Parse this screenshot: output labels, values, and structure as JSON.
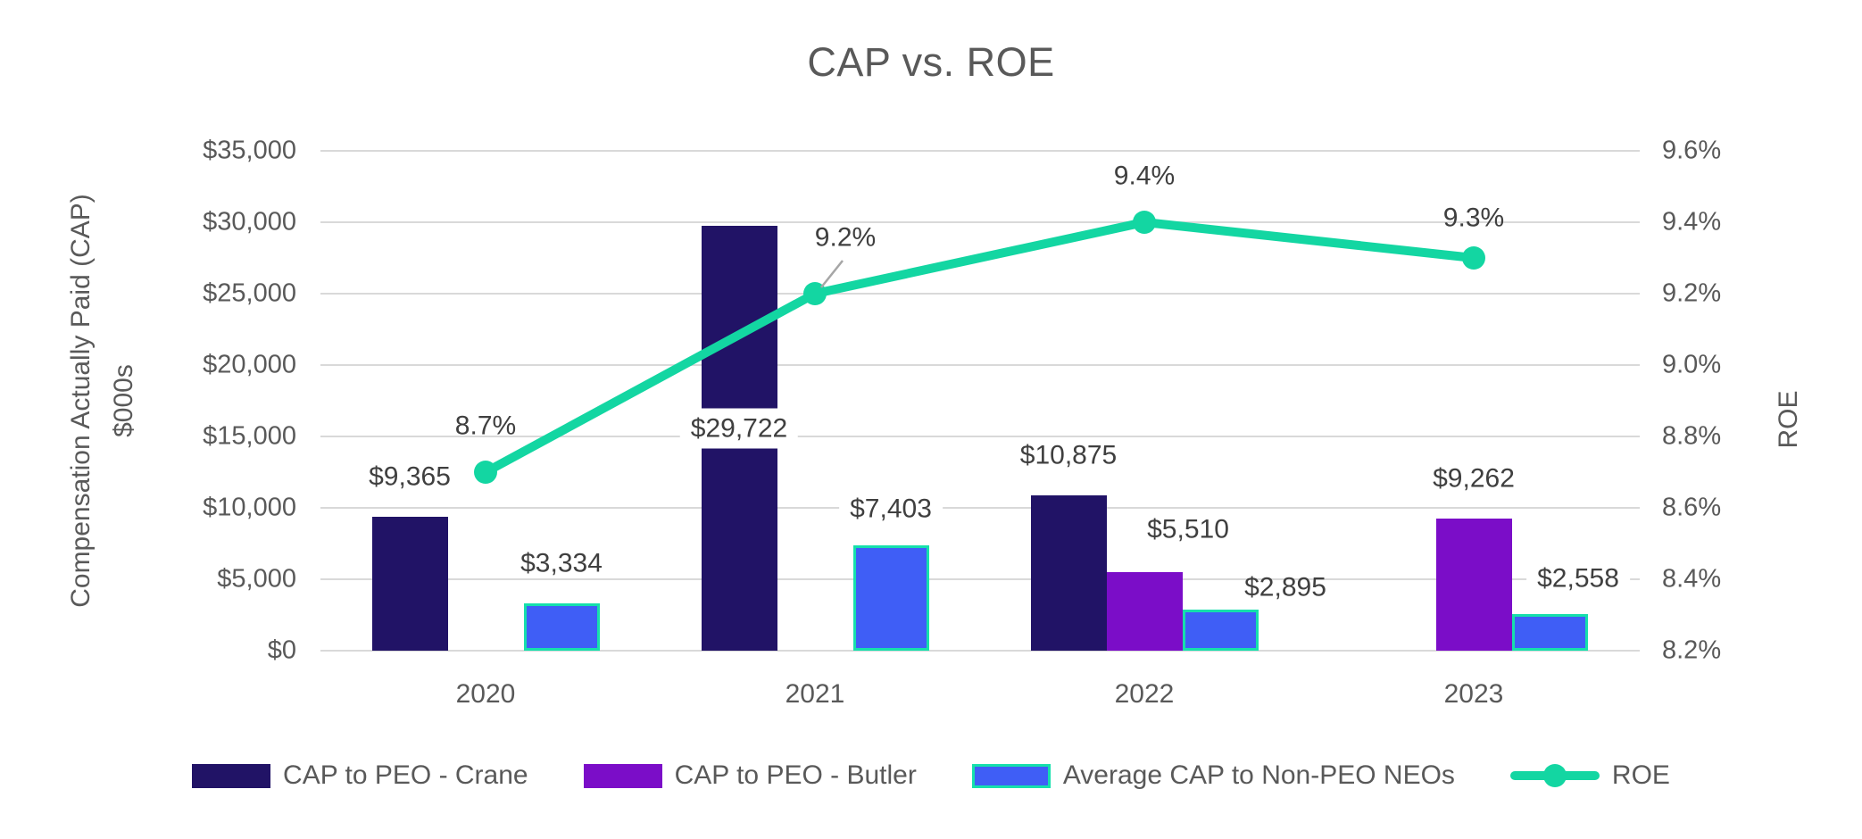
{
  "chart_data": {
    "type": "bar+line",
    "title": "CAP vs. ROE",
    "categories": [
      "2020",
      "2021",
      "2022",
      "2023"
    ],
    "series": [
      {
        "name": "CAP to PEO - Crane",
        "chart_type": "bar",
        "axis": "left",
        "color": "#211366",
        "values": [
          9365,
          29722,
          10875,
          null
        ],
        "point_labels": [
          "$9,365",
          "$29,722",
          "$10,875",
          null
        ]
      },
      {
        "name": "CAP to PEO - Butler",
        "chart_type": "bar",
        "axis": "left",
        "color": "#7B0DC8",
        "values": [
          null,
          null,
          5510,
          9262
        ],
        "point_labels": [
          null,
          null,
          "$5,510",
          "$9,262"
        ]
      },
      {
        "name": "Average CAP to Non-PEO NEOs",
        "chart_type": "bar",
        "axis": "left",
        "color": "#3F5EF6",
        "border_color": "#15E0AC",
        "values": [
          3334,
          7403,
          2895,
          2558
        ],
        "point_labels": [
          "$3,334",
          "$7,403",
          "$2,895",
          "$2,558"
        ]
      },
      {
        "name": "ROE",
        "chart_type": "line",
        "axis": "right",
        "color": "#13D6A2",
        "values": [
          8.7,
          9.2,
          9.4,
          9.3
        ],
        "point_labels": [
          "8.7%",
          "9.2%",
          "9.4%",
          "9.3%"
        ]
      }
    ],
    "left_axis": {
      "title_line1": "Compensation Actually Paid (CAP)",
      "title_line2": "$000s",
      "ticks": [
        "$35,000",
        "$30,000",
        "$25,000",
        "$20,000",
        "$15,000",
        "$10,000",
        "$5,000",
        "$0"
      ],
      "min": 0,
      "max": 35000
    },
    "right_axis": {
      "title": "ROE",
      "ticks": [
        "9.6%",
        "9.4%",
        "9.2%",
        "9.0%",
        "8.8%",
        "8.6%",
        "8.4%",
        "8.2%"
      ],
      "min": 8.2,
      "max": 9.6
    },
    "grid": true,
    "legend_position": "bottom"
  }
}
